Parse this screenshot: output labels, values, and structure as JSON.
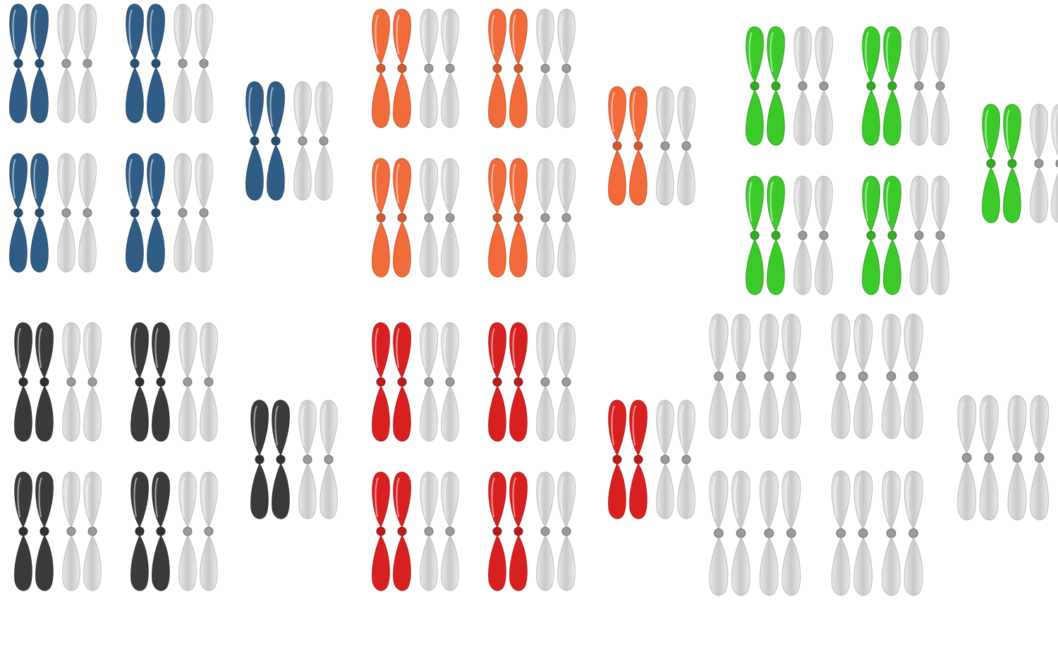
{
  "image": {
    "background": "#ffffff",
    "description_colors": {
      "blue": "#2f5d86",
      "orange": "#f26b3a",
      "green": "#3cc92a",
      "black": "#3a3a3a",
      "red": "#d92020",
      "clear": "#d6d6d6",
      "white": "#f4f4f4",
      "hub": "#9a9a9a"
    },
    "groups": [
      {
        "name": "blue-set-group",
        "color_key": "blue",
        "companion_key": "clear",
        "sets": 5
      },
      {
        "name": "orange-set-group",
        "color_key": "orange",
        "companion_key": "clear",
        "sets": 5
      },
      {
        "name": "green-set-group",
        "color_key": "green",
        "companion_key": "white",
        "sets": 5
      },
      {
        "name": "black-set-group",
        "color_key": "black",
        "companion_key": "clear",
        "sets": 5
      },
      {
        "name": "red-set-group",
        "color_key": "red",
        "companion_key": "clear",
        "sets": 5
      },
      {
        "name": "clear-set-group",
        "color_key": "clear",
        "companion_key": "clear",
        "sets": 5
      }
    ]
  }
}
